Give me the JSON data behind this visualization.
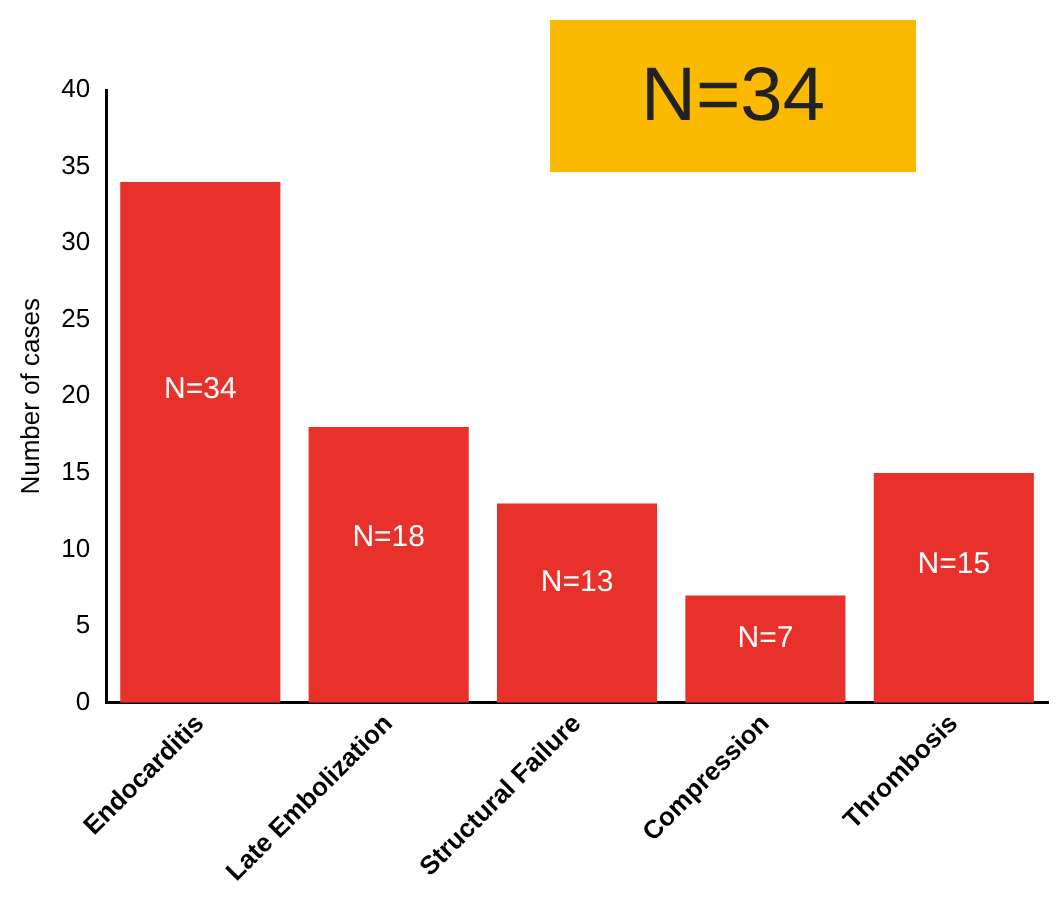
{
  "chart_data": {
    "type": "bar",
    "ylabel": "Number of cases",
    "categories": [
      "Endocarditis",
      "Late Embolization",
      "Structural Failure",
      "Compression",
      "Thrombosis"
    ],
    "values": [
      34,
      18,
      13,
      7,
      15
    ],
    "value_labels": [
      "N=34",
      "N=18",
      "N=13",
      "N=7",
      "N=15"
    ],
    "color": "#e8312a",
    "ylim": [
      0,
      40
    ],
    "yticks": [
      0,
      5,
      10,
      15,
      20,
      25,
      30,
      35,
      40
    ],
    "grid": false,
    "legend": false,
    "annotations": [
      "N=34"
    ]
  }
}
